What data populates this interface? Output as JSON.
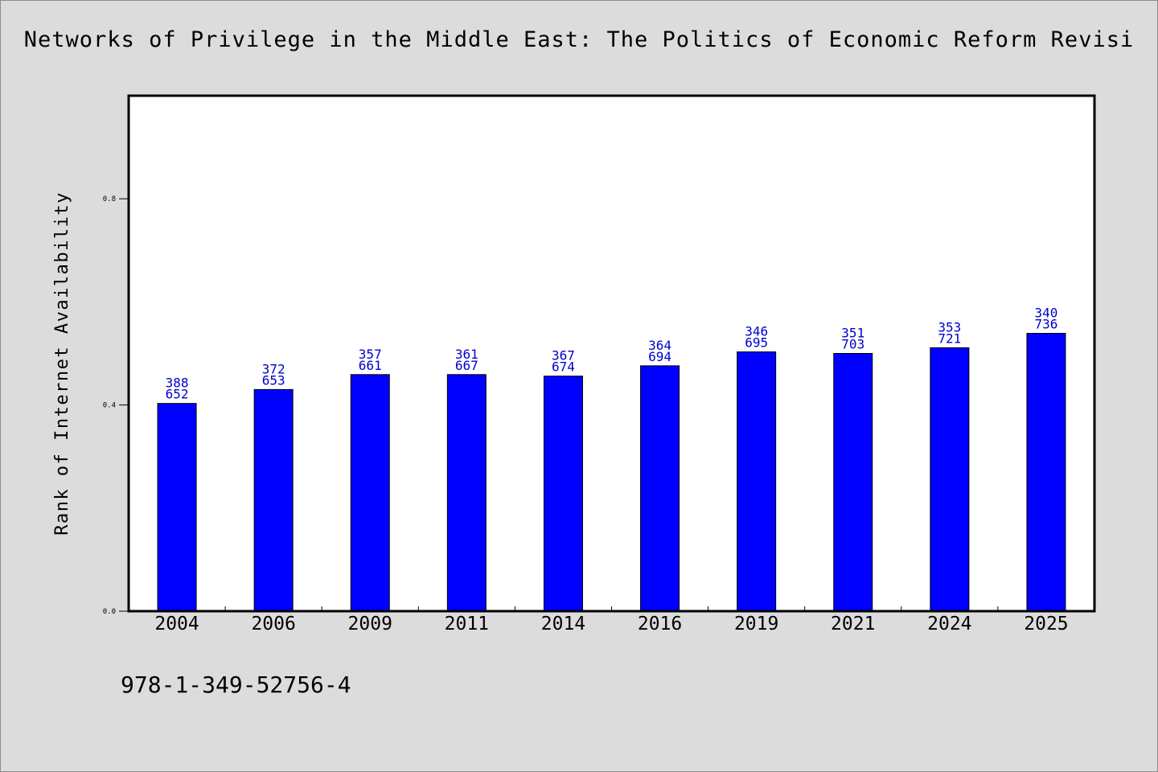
{
  "chart_data": {
    "type": "bar",
    "title": "Networks of Privilege in the Middle East: The Politics of Economic Reform Revisi",
    "xlabel": "",
    "ylabel": "Rank of Internet Availability",
    "categories": [
      "2004",
      "2006",
      "2009",
      "2011",
      "2014",
      "2016",
      "2019",
      "2021",
      "2024",
      "2025"
    ],
    "series": [
      {
        "values": [
          0.403,
          0.43,
          0.459,
          0.459,
          0.456,
          0.476,
          0.503,
          0.5,
          0.511,
          0.539
        ],
        "color": "#0000ff"
      }
    ],
    "data_labels": [
      [
        "388",
        "652"
      ],
      [
        "372",
        "653"
      ],
      [
        "357",
        "661"
      ],
      [
        "361",
        "667"
      ],
      [
        "367",
        "674"
      ],
      [
        "364",
        "694"
      ],
      [
        "346",
        "695"
      ],
      [
        "351",
        "703"
      ],
      [
        "353",
        "721"
      ],
      [
        "340",
        "736"
      ]
    ],
    "ylim": [
      0.0,
      1.0
    ],
    "yticks": [
      {
        "value": 0.0,
        "label": "0.0"
      },
      {
        "value": 0.4,
        "label": "0.4"
      },
      {
        "value": 0.8,
        "label": "0.8"
      }
    ],
    "grid": false,
    "legend": "none",
    "bar_color": "#0000ff",
    "label_color": "#0000cc",
    "background_color": "#dcdcdc",
    "plot_background_color": "#ffffff"
  },
  "footer": {
    "isbn": "978-1-349-52756-4"
  }
}
